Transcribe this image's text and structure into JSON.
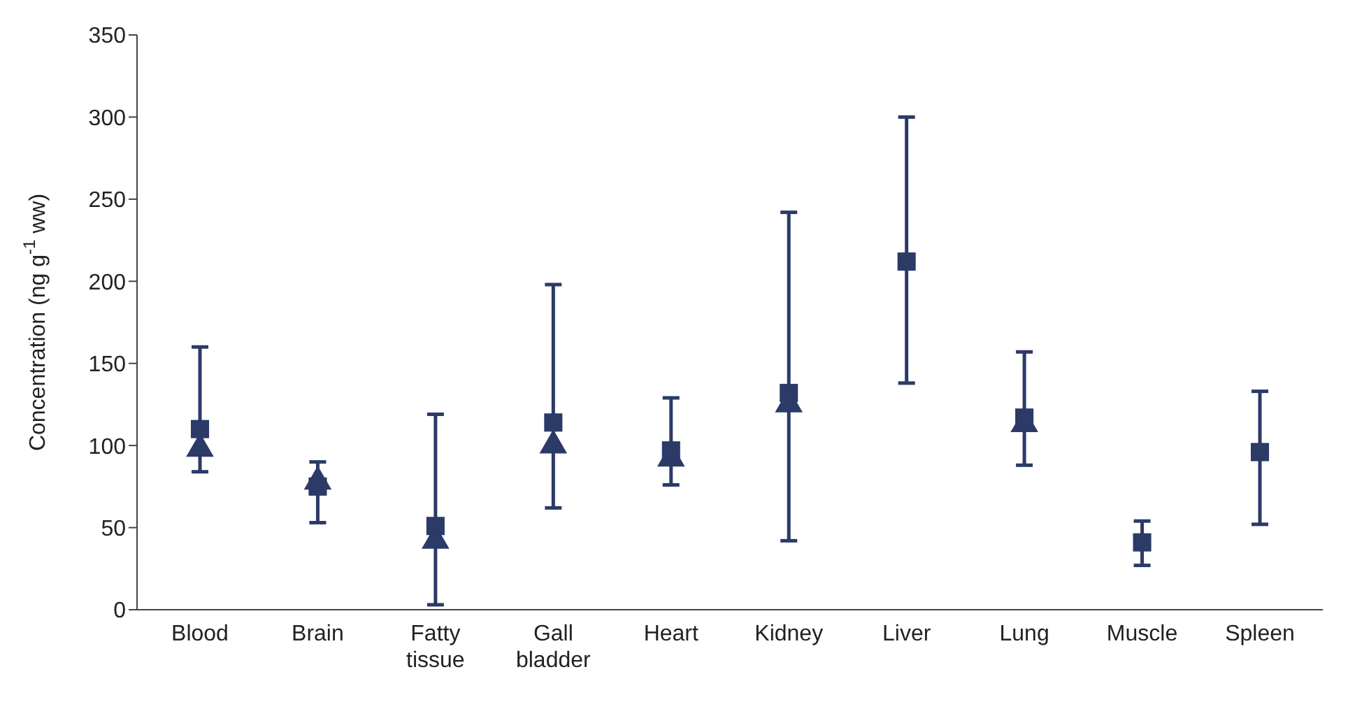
{
  "chart_data": {
    "type": "scatter",
    "ylabel": "Concentration (ng g$^{-1}$ ww)",
    "categories": [
      "Blood",
      "Brain",
      "Fatty tissue",
      "Gall bladder",
      "Heart",
      "Kidney",
      "Liver",
      "Lung",
      "Muscle",
      "Spleen"
    ],
    "series": [
      {
        "color": "#2b3a67",
        "marker": "triangle",
        "values": [
          98,
          78,
          42,
          100,
          92,
          125,
          null,
          113,
          null,
          null
        ]
      },
      {
        "color": "#2b3a67",
        "marker": "square",
        "values": [
          110,
          75,
          51,
          114,
          97,
          132,
          212,
          117,
          41,
          96
        ],
        "errors": [
          [
            84,
            160
          ],
          [
            53,
            90
          ],
          [
            3,
            119
          ],
          [
            62,
            198
          ],
          [
            76,
            129
          ],
          [
            42,
            242
          ],
          [
            138,
            300
          ],
          [
            88,
            157
          ],
          [
            27,
            54
          ],
          [
            52,
            133
          ]
        ]
      }
    ],
    "ylim": [
      0,
      350
    ],
    "yticks": [
      0,
      50,
      100,
      150,
      200,
      250,
      300,
      350
    ],
    "grid": false,
    "legend": false
  }
}
